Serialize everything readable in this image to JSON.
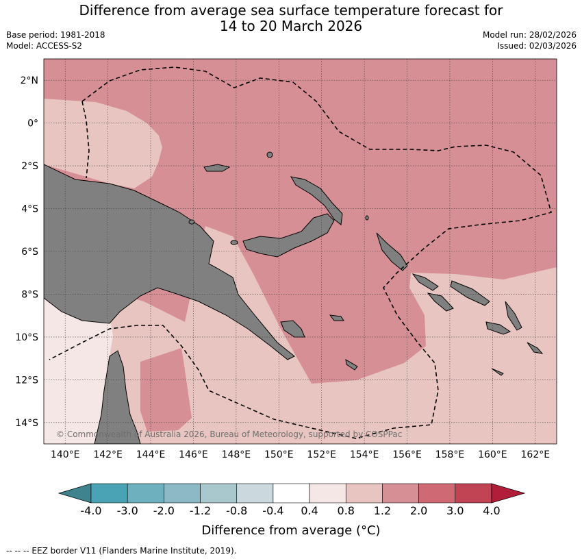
{
  "title_line1": "Difference from average sea surface temperature forecast for",
  "title_line2": "14 to 20 March 2026",
  "meta": {
    "base_period": "Base period: 1981-2018",
    "model": "Model: ACCESS-S2",
    "model_run": "Model run: 28/02/2026",
    "issued": "Issued: 02/03/2026"
  },
  "map": {
    "lon_range": [
      139,
      163
    ],
    "lat_range": [
      -15,
      3
    ],
    "lon_ticks": [
      "140°E",
      "142°E",
      "144°E",
      "146°E",
      "148°E",
      "150°E",
      "152°E",
      "154°E",
      "156°E",
      "158°E",
      "160°E",
      "162°E"
    ],
    "lat_ticks": [
      "2°N",
      "0°",
      "2°S",
      "4°S",
      "6°S",
      "8°S",
      "10°S",
      "12°S",
      "14°S"
    ],
    "copyright": "© Commonwealth of Australia 2026, Bureau of Meteorology, supported by COSPPac",
    "land_color": "#808080",
    "grid": "dotted"
  },
  "colorbar": {
    "title": "Difference from average (°C)",
    "tick_labels": [
      "-4.0",
      "-3.0",
      "-2.0",
      "-1.2",
      "-0.8",
      "-0.4",
      "0.4",
      "0.8",
      "1.2",
      "2.0",
      "3.0",
      "4.0"
    ],
    "colors": [
      "#3f838f",
      "#4aa3b4",
      "#6fb0bf",
      "#8cb9c5",
      "#a8c8ce",
      "#cbd9de",
      "#ffffff",
      "#f5e7e6",
      "#e8c5c1",
      "#d68f95",
      "#cf6973",
      "#c04454",
      "#b21d3a"
    ]
  },
  "footer": "--  --  -- EEZ border V11 (Flanders Marine Institute, 2019)."
}
